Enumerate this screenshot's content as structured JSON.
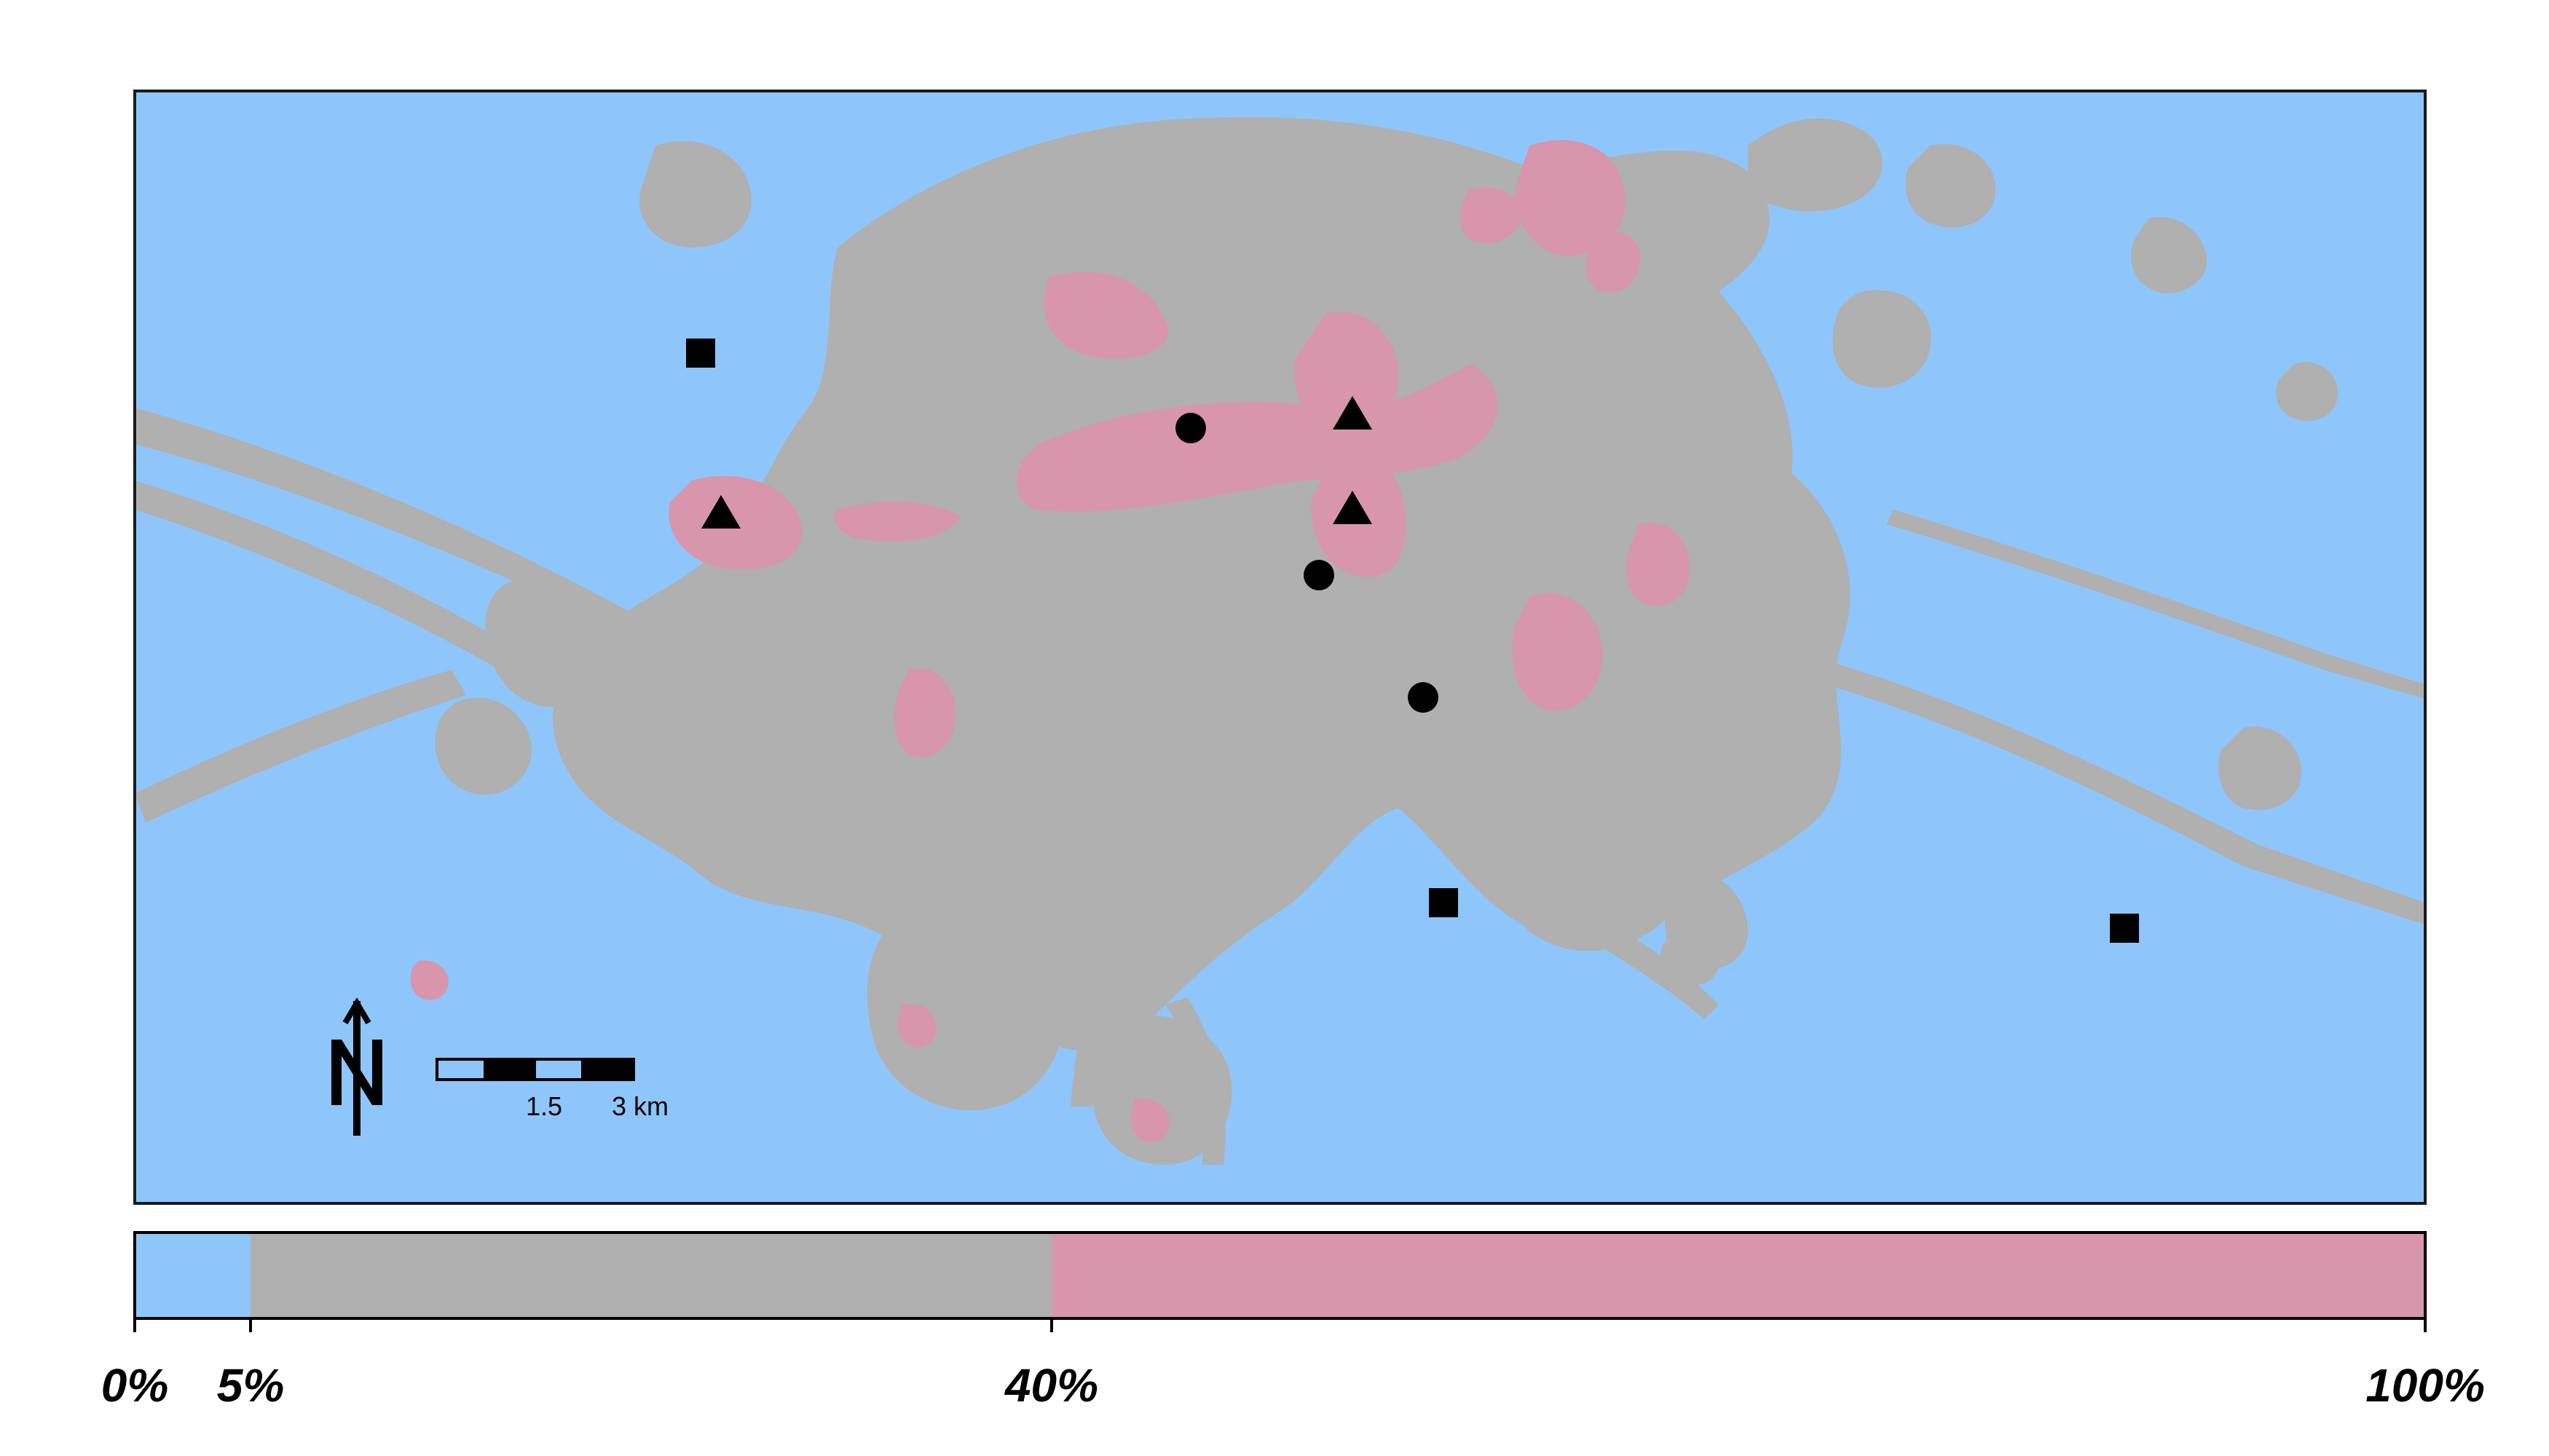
{
  "map": {
    "colors": {
      "low": "#8ec6fb",
      "mid": "#b0b0b0",
      "high": "#d796ab",
      "frame": "#000000"
    },
    "scale_bar": {
      "labels": [
        "1.5",
        "3 km"
      ],
      "segments": [
        "light",
        "dark",
        "light",
        "dark"
      ]
    },
    "north_arrow": {
      "label": "N",
      "icon": "north-arrow-icon"
    },
    "markers": [
      {
        "shape": "square",
        "icon": "square-marker-icon"
      },
      {
        "shape": "square",
        "icon": "square-marker-icon"
      },
      {
        "shape": "square",
        "icon": "square-marker-icon"
      },
      {
        "shape": "triangle",
        "icon": "triangle-marker-icon"
      },
      {
        "shape": "triangle",
        "icon": "triangle-marker-icon"
      },
      {
        "shape": "triangle",
        "icon": "triangle-marker-icon"
      },
      {
        "shape": "circle",
        "icon": "circle-marker-icon"
      },
      {
        "shape": "circle",
        "icon": "circle-marker-icon"
      },
      {
        "shape": "circle",
        "icon": "circle-marker-icon"
      }
    ]
  },
  "legend": {
    "classes": [
      {
        "from": 0,
        "to": 5,
        "color": "#8ec6fb"
      },
      {
        "from": 5,
        "to": 40,
        "color": "#b0b0b0"
      },
      {
        "from": 40,
        "to": 100,
        "color": "#d796ab"
      }
    ],
    "ticks": [
      "0%",
      "5%",
      "40%",
      "100%"
    ]
  }
}
